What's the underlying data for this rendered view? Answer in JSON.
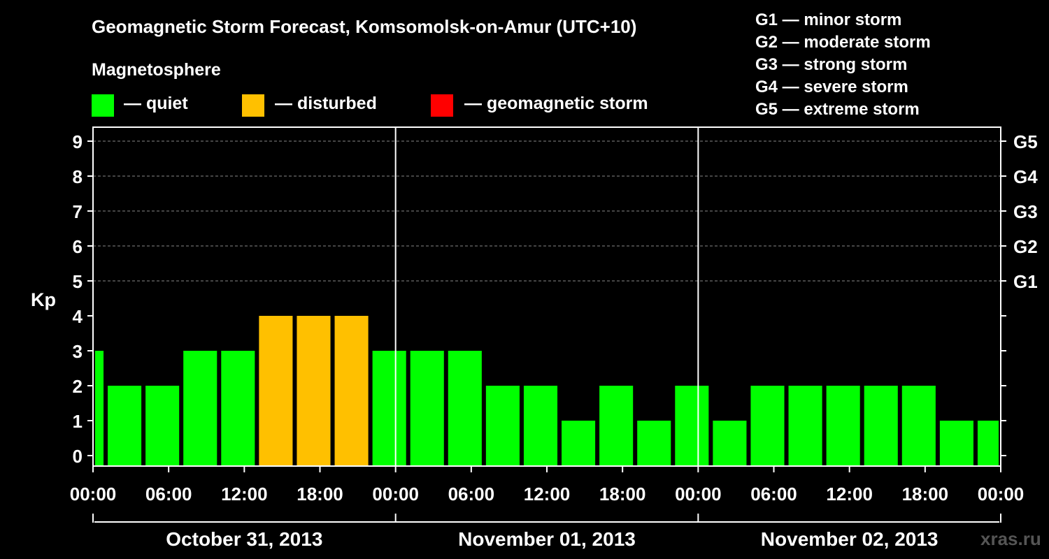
{
  "title": "Geomagnetic Storm Forecast, Komsomolsk-on-Amur (UTC+10)",
  "subtitle": "Magnetosphere",
  "legend": [
    {
      "label": "— quiet",
      "color": "#00ff00"
    },
    {
      "label": "— disturbed",
      "color": "#ffc000"
    },
    {
      "label": "— geomagnetic storm",
      "color": "#ff0000"
    }
  ],
  "g_legend": [
    "G1 — minor storm",
    "G2 — moderate storm",
    "G3 — strong storm",
    "G4 — severe storm",
    "G5 — extreme storm"
  ],
  "watermark": "xras.ru",
  "chart_data": {
    "type": "bar",
    "title": "Geomagnetic Storm Forecast, Komsomolsk-on-Amur (UTC+10)",
    "ylabel": "Kp",
    "ylim": [
      0,
      9
    ],
    "yticks": [
      "0",
      "1",
      "2",
      "3",
      "4",
      "5",
      "6",
      "7",
      "8",
      "9"
    ],
    "g_scale": [
      {
        "kp": 5,
        "label": "G1"
      },
      {
        "kp": 6,
        "label": "G2"
      },
      {
        "kp": 7,
        "label": "G3"
      },
      {
        "kp": 8,
        "label": "G4"
      },
      {
        "kp": 9,
        "label": "G5"
      }
    ],
    "xlim_hours": [
      0,
      72
    ],
    "xticks": [
      "00:00",
      "06:00",
      "12:00",
      "18:00",
      "00:00",
      "06:00",
      "12:00",
      "18:00",
      "00:00",
      "06:00",
      "12:00",
      "18:00",
      "00:00"
    ],
    "dates": [
      "October 31, 2013",
      "November 01, 2013",
      "November 02, 2013"
    ],
    "bars": [
      {
        "start": 0,
        "end": 1,
        "kp": 3
      },
      {
        "start": 1,
        "end": 4,
        "kp": 2
      },
      {
        "start": 4,
        "end": 7,
        "kp": 2
      },
      {
        "start": 7,
        "end": 10,
        "kp": 3
      },
      {
        "start": 10,
        "end": 13,
        "kp": 3
      },
      {
        "start": 13,
        "end": 16,
        "kp": 4
      },
      {
        "start": 16,
        "end": 19,
        "kp": 4
      },
      {
        "start": 19,
        "end": 22,
        "kp": 4
      },
      {
        "start": 22,
        "end": 25,
        "kp": 3
      },
      {
        "start": 25,
        "end": 28,
        "kp": 3
      },
      {
        "start": 28,
        "end": 31,
        "kp": 3
      },
      {
        "start": 31,
        "end": 34,
        "kp": 2
      },
      {
        "start": 34,
        "end": 37,
        "kp": 2
      },
      {
        "start": 37,
        "end": 40,
        "kp": 1
      },
      {
        "start": 40,
        "end": 43,
        "kp": 2
      },
      {
        "start": 43,
        "end": 46,
        "kp": 1
      },
      {
        "start": 46,
        "end": 49,
        "kp": 2
      },
      {
        "start": 49,
        "end": 52,
        "kp": 1
      },
      {
        "start": 52,
        "end": 55,
        "kp": 2
      },
      {
        "start": 55,
        "end": 58,
        "kp": 2
      },
      {
        "start": 58,
        "end": 61,
        "kp": 2
      },
      {
        "start": 61,
        "end": 64,
        "kp": 2
      },
      {
        "start": 64,
        "end": 67,
        "kp": 2
      },
      {
        "start": 67,
        "end": 70,
        "kp": 1
      },
      {
        "start": 70,
        "end": 72,
        "kp": 1
      }
    ],
    "colors": {
      "quiet": "#00ff00",
      "disturbed": "#ffc000",
      "storm": "#ff0000"
    }
  }
}
